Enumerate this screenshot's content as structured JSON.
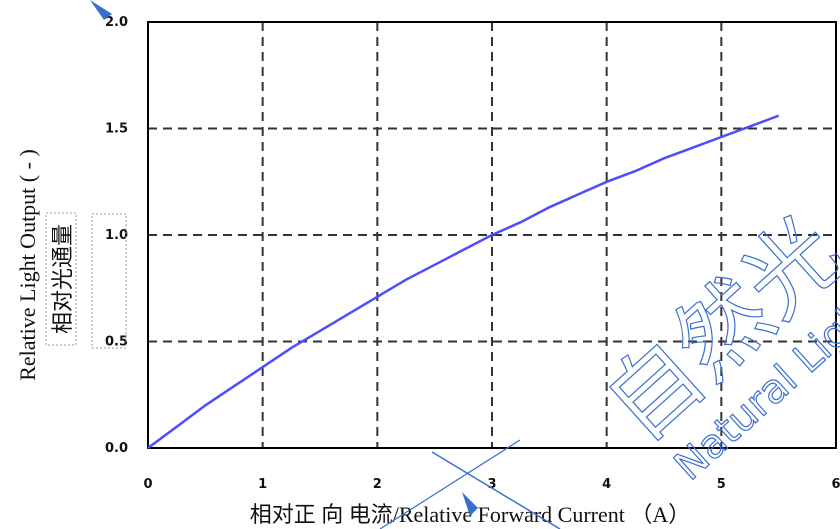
{
  "chart_data": {
    "type": "line",
    "xlabel": "相对正 向 电流/Relative Forward Current （A）",
    "ylabel": "Relative  Light Output ( - )",
    "ylabel_cn": "相对光通量",
    "xlim": [
      0,
      6
    ],
    "ylim": [
      0,
      2.0
    ],
    "x_ticks": [
      "0",
      "1",
      "2",
      "3",
      "4",
      "5",
      "6"
    ],
    "y_ticks": [
      "0.0",
      "0.5",
      "1.0",
      "1.5",
      "2.0"
    ],
    "grid": true,
    "series": [
      {
        "color": "#4d4dff",
        "x": [
          0,
          0.25,
          0.5,
          0.75,
          1.0,
          1.25,
          1.5,
          1.75,
          2.0,
          2.25,
          2.5,
          2.75,
          3.0,
          3.25,
          3.5,
          3.75,
          4.0,
          4.25,
          4.5,
          4.75,
          5.0,
          5.25,
          5.5
        ],
        "y": [
          0,
          0.1,
          0.2,
          0.29,
          0.38,
          0.47,
          0.55,
          0.63,
          0.71,
          0.79,
          0.86,
          0.93,
          1.0,
          1.06,
          1.13,
          1.19,
          1.25,
          1.3,
          1.36,
          1.41,
          1.46,
          1.51,
          1.56
        ]
      }
    ]
  },
  "watermark": {
    "cn": "自然光",
    "en": "Natural Light",
    "color": "#3a6fd0"
  }
}
